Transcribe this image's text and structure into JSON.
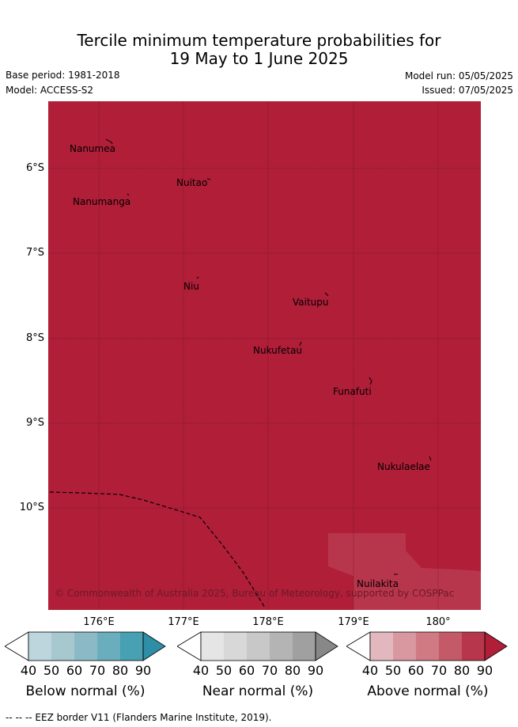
{
  "title_line1": "Tercile minimum temperature probabilities for",
  "title_line2": "19 May to 1 June 2025",
  "base_period": "Base period: 1981-2018",
  "model": "Model: ACCESS-S2",
  "model_run": "Model run: 05/05/2025",
  "issued": "Issued: 07/05/2025",
  "lat_labels": [
    "6°S",
    "7°S",
    "8°S",
    "9°S",
    "10°S"
  ],
  "lon_labels": [
    "176°E",
    "177°E",
    "178°E",
    "179°E",
    "180°"
  ],
  "islands": [
    "Nanumea",
    "Nuitao",
    "Nanumanga",
    "Niu",
    "Vaitupu",
    "Nukufetau",
    "Funafuti",
    "Nukulaelae",
    "Nuilakita"
  ],
  "copyright": "© Commonwealth of Australia 2025, Bureau of Meteorology, supported by COSPPac",
  "colorbars": [
    {
      "title": "Below normal (%)",
      "ticks": [
        "40",
        "50",
        "60",
        "70",
        "80",
        "90"
      ],
      "colors": [
        "#ffffff",
        "#bdd5dc",
        "#a7c8cf",
        "#8bbac6",
        "#6aaebd",
        "#48a0b3",
        "#2d8ea5"
      ]
    },
    {
      "title": "Near normal (%)",
      "ticks": [
        "40",
        "50",
        "60",
        "70",
        "80",
        "90"
      ],
      "colors": [
        "#ffffff",
        "#e5e5e5",
        "#d8d8d8",
        "#c8c8c8",
        "#b4b4b4",
        "#a0a0a0",
        "#888888"
      ]
    },
    {
      "title": "Above normal (%)",
      "ticks": [
        "40",
        "50",
        "60",
        "70",
        "80",
        "90"
      ],
      "colors": [
        "#ffffff",
        "#e2b8be",
        "#d9979f",
        "#d07a84",
        "#c45a68",
        "#b8364c",
        "#b01e38"
      ]
    }
  ],
  "footer": "--  --  -- EEZ border V11 (Flanders Marine Institute, 2019).",
  "colors": {
    "map_fill": "#b01e38",
    "map_fill_light": "#b8364c"
  }
}
